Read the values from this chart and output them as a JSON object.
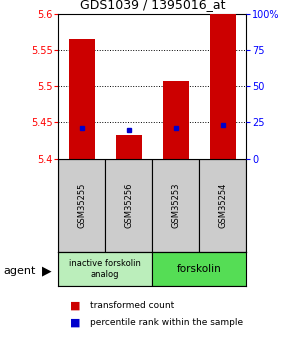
{
  "title": "GDS1039 / 1395016_at",
  "samples": [
    "GSM35255",
    "GSM35256",
    "GSM35253",
    "GSM35254"
  ],
  "bar_values": [
    5.565,
    5.433,
    5.507,
    5.6
  ],
  "percentile_values": [
    5.443,
    5.44,
    5.443,
    5.447
  ],
  "ylim": [
    5.4,
    5.6
  ],
  "yticks_left": [
    5.4,
    5.45,
    5.5,
    5.55,
    5.6
  ],
  "yticks_right_pct": [
    0,
    25,
    50,
    75,
    100
  ],
  "bar_color": "#cc0000",
  "percentile_color": "#0000cc",
  "bar_bottom": 5.4,
  "bar_width": 0.55,
  "agent_label": "agent",
  "group1_label": "inactive forskolin\nanalog",
  "group2_label": "forskolin",
  "group1_samples": [
    0,
    1
  ],
  "group2_samples": [
    2,
    3
  ],
  "group1_color": "#bbeebb",
  "group2_color": "#55dd55",
  "sample_box_color": "#cccccc",
  "legend_red": "transformed count",
  "legend_blue": "percentile rank within the sample",
  "title_fontsize": 9,
  "tick_fontsize": 7,
  "label_fontsize": 6.5
}
